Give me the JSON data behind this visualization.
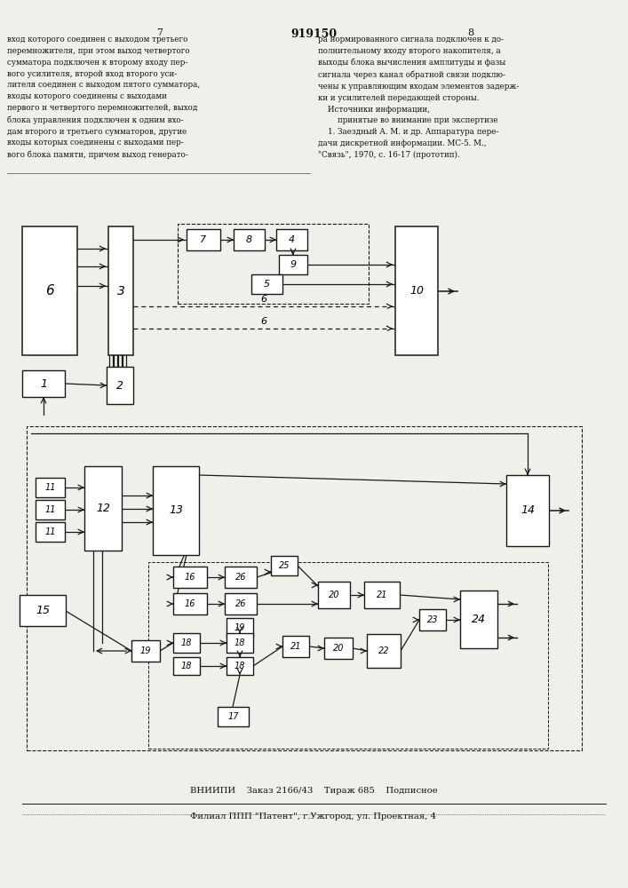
{
  "page_header_num": "7",
  "page_header_title": "919150",
  "page_header_num2": "8",
  "text_left": "вход которого соединен с выходом третьего\nперемножителя, при этом выход четвертого\nсумматора подключен к второму входу пер-\nвого усилителя, второй вход второго уси-\nлителя соединен с выходом пятого сумматора,\nвходы которого соединены с выходами\nпервого и четвертого перемножителей, выход\nблока управления подключен к одним вхо-\nдам второго и третьего сумматоров, другие\nвходы которых соединены с выходами пер-\nвого блока памяти, причем выход генерато-",
  "text_right": "ра нормированного сигнала подключен к до-\nполнительному входу второго накопителя, а\nвыходы блока вычисления амплитуды и фазы\nсигнала через канал обратной связи подклю-\nчены к управляющим входам элементов задерж-\nки и усилителей передающей стороны.\n    Источники информации,\n        принятые во внимание при экспертизе\n    1. Заездный А. М. и др. Аппаратура пере-\nдачи дискретной информации. МС-5. М.,\n\"Связь\", 1970, с. 16-17 (прототип).",
  "footer_line1": "ВНИИПИ    Заказ 2166/43    Тираж 685    Подписное",
  "footer_line2": "Филиал ППП \"Патент\", г.Ужгород, ул. Проектная, 4",
  "bg_color": "#f0efea",
  "line_color": "#1a1a1a",
  "text_color": "#111111"
}
